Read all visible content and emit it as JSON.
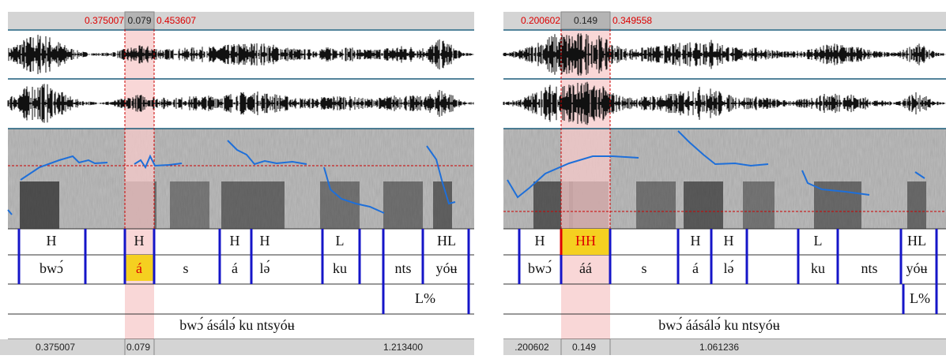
{
  "panels": [
    {
      "top_bar": {
        "left": "0.375007",
        "selection": "0.079",
        "right": "0.453607"
      },
      "tiers": [
        [
          "H",
          "H",
          "H",
          "H",
          "L",
          "HL"
        ],
        [
          "bwɔ́",
          "á",
          "s",
          "á",
          "lə́",
          "ku",
          "nts",
          "yóʉ"
        ],
        [
          "L%"
        ]
      ],
      "sentence": "bwɔ́ ásálə́ ku ntsyóʉ",
      "bottom_bar": {
        "left": "0.375007",
        "selection": "0.079",
        "total": "1.213400"
      }
    },
    {
      "top_bar": {
        "left": "0.200602",
        "selection": "0.149",
        "right": "0.349558"
      },
      "tiers": [
        [
          "H",
          "HH",
          "H",
          "H",
          "L",
          "HL"
        ],
        [
          "bwɔ́",
          "áá",
          "s",
          "á",
          "lə́",
          "ku",
          "nts",
          "yóʉ"
        ],
        [
          "L%"
        ]
      ],
      "sentence": "bwɔ́ áásálə́ ku ntsyóʉ",
      "bottom_bar": {
        "left": ".200602",
        "selection": "0.149",
        "total": "1.061236"
      }
    }
  ]
}
